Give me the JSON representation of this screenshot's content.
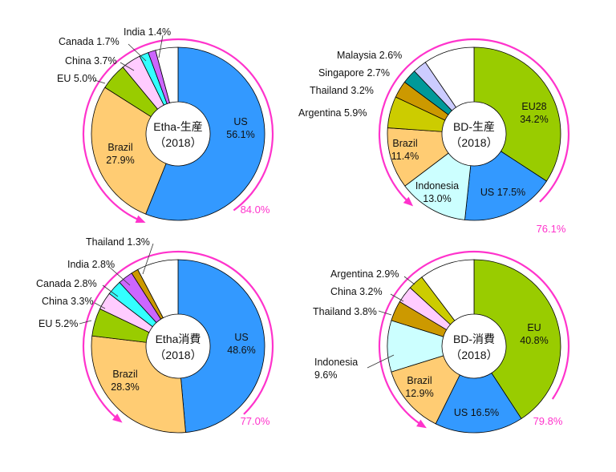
{
  "chart_data": [
    {
      "type": "pie",
      "center_title": "Etha-生産",
      "center_subtitle": "（2018）",
      "coverage_label": "84.0%",
      "slices": [
        {
          "name": "US",
          "value": 56.1,
          "label": "US\n56.1%",
          "color": "#3399ff"
        },
        {
          "name": "Brazil",
          "value": 27.9,
          "label": "Brazil\n27.9%",
          "color": "#ffcc73"
        },
        {
          "name": "EU",
          "value": 5.0,
          "label": "EU 5.0%",
          "color": "#99cc00"
        },
        {
          "name": "China",
          "value": 3.7,
          "label": "China 3.7%",
          "color": "#ffccff"
        },
        {
          "name": "Canada",
          "value": 1.7,
          "label": "Canada 1.7%",
          "color": "#33ffff"
        },
        {
          "name": "India",
          "value": 1.4,
          "label": "India 1.4%",
          "color": "#cc66ff"
        },
        {
          "name": "Other",
          "value": 4.2,
          "label": "",
          "color": "#ffffff"
        }
      ]
    },
    {
      "type": "pie",
      "center_title": "BD-生産",
      "center_subtitle": "（2018）",
      "coverage_label": "76.1%",
      "slices": [
        {
          "name": "EU28",
          "value": 34.2,
          "label": "EU28\n34.2%",
          "color": "#99cc00"
        },
        {
          "name": "US",
          "value": 17.5,
          "label": "US 17.5%",
          "color": "#3399ff"
        },
        {
          "name": "Indonesia",
          "value": 13.0,
          "label": "Indonesia\n13.0%",
          "color": "#ccffff"
        },
        {
          "name": "Brazil",
          "value": 11.4,
          "label": "Brazil\n11.4%",
          "color": "#ffcc73"
        },
        {
          "name": "Argentina",
          "value": 5.9,
          "label": "Argentina 5.9%",
          "color": "#cccc00"
        },
        {
          "name": "Thailand",
          "value": 3.2,
          "label": "Thailand 3.2%",
          "color": "#cc9900"
        },
        {
          "name": "Singapore",
          "value": 2.7,
          "label": "Singapore 2.7%",
          "color": "#009999"
        },
        {
          "name": "Malaysia",
          "value": 2.6,
          "label": "Malaysia 2.6%",
          "color": "#ccccff"
        },
        {
          "name": "Other",
          "value": 9.5,
          "label": "",
          "color": "#ffffff"
        }
      ]
    },
    {
      "type": "pie",
      "center_title": "Etha消費",
      "center_subtitle": "（2018）",
      "coverage_label": "77.0%",
      "slices": [
        {
          "name": "US",
          "value": 48.6,
          "label": "US\n48.6%",
          "color": "#3399ff"
        },
        {
          "name": "Brazil",
          "value": 28.3,
          "label": "Brazil\n28.3%",
          "color": "#ffcc73"
        },
        {
          "name": "EU",
          "value": 5.2,
          "label": "EU 5.2%",
          "color": "#99cc00"
        },
        {
          "name": "China",
          "value": 3.3,
          "label": "China 3.3%",
          "color": "#ffccff"
        },
        {
          "name": "Canada",
          "value": 2.8,
          "label": "Canada 2.8%",
          "color": "#33ffff"
        },
        {
          "name": "India",
          "value": 2.8,
          "label": "India 2.8%",
          "color": "#cc66ff"
        },
        {
          "name": "Thailand",
          "value": 1.3,
          "label": "Thailand 1.3%",
          "color": "#cc9900"
        },
        {
          "name": "Other",
          "value": 7.7,
          "label": "",
          "color": "#ffffff"
        }
      ]
    },
    {
      "type": "pie",
      "center_title": "BD-消費",
      "center_subtitle": "（2018）",
      "coverage_label": "79.8%",
      "slices": [
        {
          "name": "EU",
          "value": 40.8,
          "label": "EU\n40.8%",
          "color": "#99cc00"
        },
        {
          "name": "US",
          "value": 16.5,
          "label": "US 16.5%",
          "color": "#3399ff"
        },
        {
          "name": "Brazil",
          "value": 12.9,
          "label": "Brazil\n12.9%",
          "color": "#ffcc73"
        },
        {
          "name": "Indonesia",
          "value": 9.6,
          "label": "Indonesia\n9.6%",
          "color": "#ccffff"
        },
        {
          "name": "Thailand",
          "value": 3.8,
          "label": "Thailand 3.8%",
          "color": "#cc9900"
        },
        {
          "name": "China",
          "value": 3.2,
          "label": "China 3.2%",
          "color": "#ffccff"
        },
        {
          "name": "Argentina",
          "value": 2.9,
          "label": "Argentina 2.9%",
          "color": "#cccc00"
        },
        {
          "name": "Other",
          "value": 10.3,
          "label": "",
          "color": "#ffffff"
        }
      ]
    }
  ],
  "colors": {
    "coverage_arc": "#ff33cc",
    "slice_border": "#000000"
  }
}
